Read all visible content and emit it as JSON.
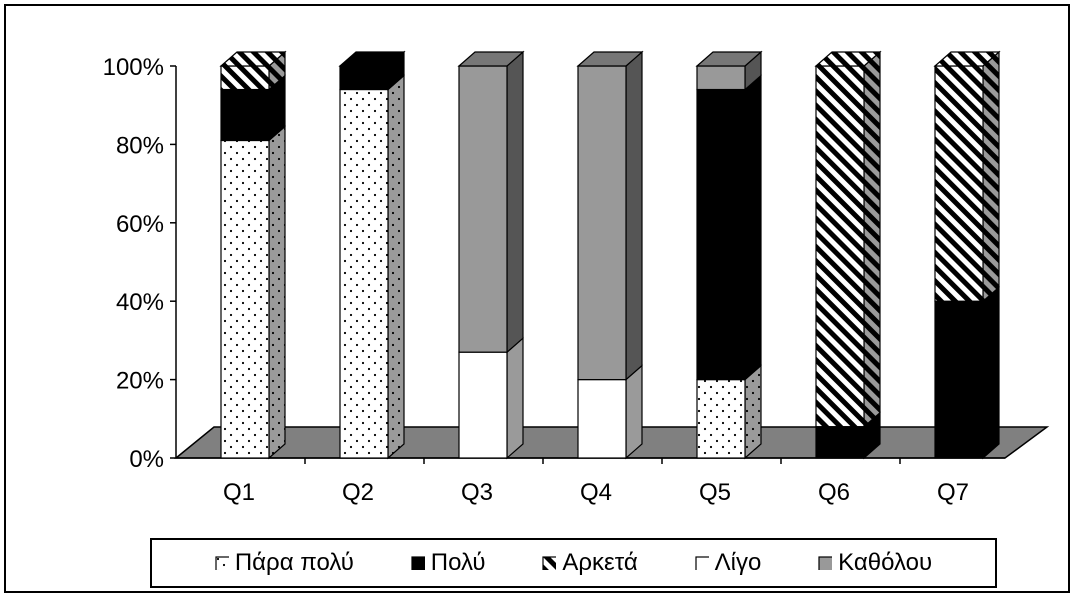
{
  "chart_data": {
    "type": "bar",
    "stacked": true,
    "percent": true,
    "three_d": true,
    "categories": [
      "Q1",
      "Q2",
      "Q3",
      "Q4",
      "Q5",
      "Q6",
      "Q7"
    ],
    "series": [
      {
        "name": "Πάρα πολύ",
        "values": [
          81,
          94,
          0,
          0,
          20,
          0,
          0
        ],
        "pattern": "dots",
        "color": "#ffffff"
      },
      {
        "name": "Πολύ",
        "values": [
          13,
          6,
          0,
          0,
          74,
          8,
          40
        ],
        "pattern": "solid",
        "color": "#000000"
      },
      {
        "name": "Αρκετά",
        "values": [
          6,
          0,
          0,
          0,
          0,
          92,
          60
        ],
        "pattern": "hatch",
        "color": "#ffffff"
      },
      {
        "name": "Λίγο",
        "values": [
          0,
          0,
          27,
          20,
          0,
          0,
          0
        ],
        "pattern": "none",
        "color": "#ffffff"
      },
      {
        "name": "Καθόλου",
        "values": [
          0,
          0,
          73,
          80,
          6,
          0,
          0
        ],
        "pattern": "solid",
        "color": "#999999"
      }
    ],
    "yticks": [
      "0%",
      "20%",
      "40%",
      "60%",
      "80%",
      "100%"
    ],
    "ylim": [
      0,
      100
    ],
    "floor_color": "#808080",
    "legend_position": "bottom"
  }
}
